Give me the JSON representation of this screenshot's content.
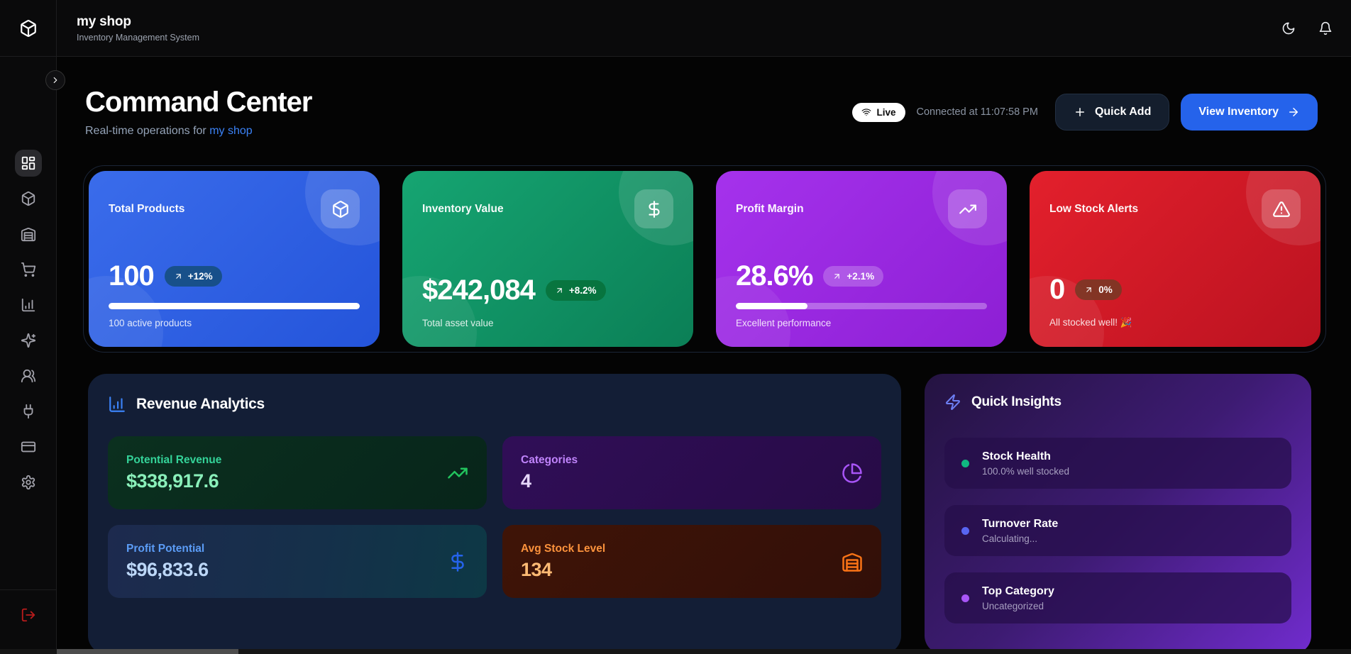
{
  "topbar": {
    "app_name": "my shop",
    "app_subtitle": "Inventory Management System",
    "logo_icon": "package",
    "theme_toggle_icon": "moon",
    "notifications_icon": "bell"
  },
  "sidebar": {
    "collapse_icon": "chevron-right",
    "items": [
      {
        "icon": "layout-dashboard",
        "active": true
      },
      {
        "icon": "package"
      },
      {
        "icon": "warehouse"
      },
      {
        "icon": "shopping-cart"
      },
      {
        "icon": "bar-chart"
      },
      {
        "icon": "sparkles"
      },
      {
        "icon": "users"
      },
      {
        "icon": "plug"
      },
      {
        "icon": "credit-card"
      },
      {
        "icon": "settings"
      }
    ],
    "logout_icon": "log-out"
  },
  "header": {
    "title": "Command Center",
    "subtitle_prefix": "Real-time operations for ",
    "subtitle_shop": "my shop",
    "live_label": "Live",
    "live_icon": "wifi",
    "connected_label": "Connected at 11:07:58 PM",
    "quick_add_label": "Quick Add",
    "quick_add_icon": "plus",
    "view_inventory_label": "View Inventory",
    "view_inventory_icon": "arrow-right"
  },
  "stat_cards": [
    {
      "label": "Total Products",
      "value": "100",
      "change": "+12%",
      "change_icon": "arrow-up-right",
      "footer": "100 active products",
      "progress_pct": 100,
      "icon": "package",
      "theme": "blue"
    },
    {
      "label": "Inventory Value",
      "value": "$242,084",
      "change": "+8.2%",
      "change_icon": "arrow-up-right",
      "footer": "Total asset value",
      "icon": "dollar-sign",
      "theme": "green"
    },
    {
      "label": "Profit Margin",
      "value": "28.6%",
      "change": "+2.1%",
      "change_icon": "arrow-up-right",
      "footer": "Excellent performance",
      "progress_pct": 28.6,
      "icon": "trending-up",
      "theme": "purple"
    },
    {
      "label": "Low Stock Alerts",
      "value": "0",
      "change": "0%",
      "change_icon": "arrow-up-right",
      "footer": "All stocked well! 🎉",
      "icon": "alert-triangle",
      "theme": "red"
    }
  ],
  "revenue_analytics": {
    "title": "Revenue Analytics",
    "title_icon": "bar-chart",
    "metrics": [
      {
        "label": "Potential Revenue",
        "value": "$338,917.6",
        "icon": "trending-up",
        "theme": "green"
      },
      {
        "label": "Categories",
        "value": "4",
        "icon": "pie-chart",
        "theme": "purple"
      },
      {
        "label": "Profit Potential",
        "value": "$96,833.6",
        "icon": "dollar-sign",
        "theme": "blue"
      },
      {
        "label": "Avg Stock Level",
        "value": "134",
        "icon": "warehouse",
        "theme": "orange"
      }
    ]
  },
  "quick_insights": {
    "title": "Quick Insights",
    "title_icon": "zap",
    "items": [
      {
        "title": "Stock Health",
        "subtitle": "100.0% well stocked",
        "dot_color": "#10b981"
      },
      {
        "title": "Turnover Rate",
        "subtitle": "Calculating...",
        "dot_color": "#5865f2"
      },
      {
        "title": "Top Category",
        "subtitle": "Uncategorized",
        "dot_color": "#a855f7"
      }
    ]
  },
  "colors": {
    "accent_blue": "#2563eb",
    "link_blue": "#3b82f6",
    "card_blue": "#3a6ceb",
    "card_green": "#16a572",
    "card_purple": "#a532ec",
    "card_red": "#e3202c",
    "logout_red": "#b91c1c"
  }
}
